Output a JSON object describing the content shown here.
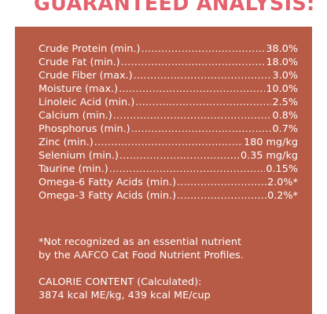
{
  "heading": "GUARANTEED ANALYSIS:",
  "nutrients": [
    {
      "name": "Crude Protein (min.)",
      "value": "38.0%"
    },
    {
      "name": "Crude Fat (min.)",
      "value": "18.0%"
    },
    {
      "name": "Crude Fiber (max.)",
      "value": "3.0%"
    },
    {
      "name": "Moisture (max.)",
      "value": "10.0%"
    },
    {
      "name": "Linoleic Acid (min.)",
      "value": "2.5%"
    },
    {
      "name": "Calcium (min.)",
      "value": "0.8%"
    },
    {
      "name": "Phosphorus (min.)",
      "value": "0.7%"
    },
    {
      "name": "Zinc (min.)",
      "value": "180 mg/kg"
    },
    {
      "name": "Selenium (min.)",
      "value": "0.35 mg/kg"
    },
    {
      "name": "Taurine (min.)",
      "value": "0.15%"
    },
    {
      "name": "Omega-6 Fatty Acids (min.)",
      "value": "2.0%*"
    },
    {
      "name": "Omega-3 Fatty Acids (min.)",
      "value": "0.2%*"
    }
  ],
  "footnote": {
    "line1": "*Not recognized as an essential nutrient",
    "line2": "by the AAFCO Cat Food Nutrient Profiles."
  },
  "calorie": {
    "line1": "CALORIE CONTENT (Calculated):",
    "line2": "3874 kcal ME/kg, 439 kcal ME/cup"
  },
  "colors": {
    "heading": "#e4616d",
    "panel": "#b75a46",
    "text": "#ffffff"
  }
}
